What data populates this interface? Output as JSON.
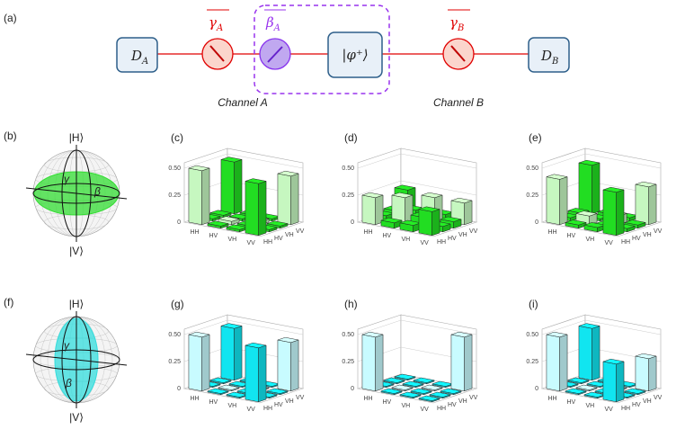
{
  "panel_a": {
    "label": "(a)",
    "detector_a": {
      "symbol": "D",
      "sub": "A"
    },
    "gamma_a": {
      "symbol": "γ",
      "sub": "A"
    },
    "beta_a": {
      "symbol": "β",
      "sub": "A"
    },
    "source": "|φ⁺⟩",
    "gamma_b": {
      "symbol": "γ",
      "sub": "B"
    },
    "detector_b": {
      "symbol": "D",
      "sub": "B"
    },
    "channel_a": "Channel A",
    "channel_b": "Channel B"
  },
  "spheres": [
    {
      "label": "(b)",
      "top": "|H⟩",
      "bottom": "|V⟩",
      "gamma": "γ",
      "beta": "β",
      "color": "#33dd33"
    },
    {
      "label": "(f)",
      "top": "|H⟩",
      "bottom": "|V⟩",
      "gamma": "γ",
      "beta": "β",
      "color": "#33dddd"
    }
  ],
  "chart_data": [
    {
      "type": "bar3d",
      "label": "(c)",
      "rows": [
        "HH",
        "HV",
        "VH",
        "VV"
      ],
      "cols": [
        "HH",
        "HV",
        "VH",
        "VV"
      ],
      "values": [
        [
          0.5,
          0.02,
          0.02,
          0.48
        ],
        [
          0.02,
          0.03,
          0.02,
          0.02
        ],
        [
          0.02,
          0.02,
          0.03,
          0.02
        ],
        [
          0.48,
          0.02,
          0.02,
          0.45
        ]
      ],
      "zlim": [
        0,
        0.55
      ],
      "zticks": [
        0,
        0.25,
        {
          "value": 0.5,
          "label": "0.50"
        }
      ],
      "colors": {
        "diagonal": "#c6f7c0",
        "off_diagonal": "#22dd22"
      }
    },
    {
      "type": "bar3d",
      "label": "(d)",
      "rows": [
        "HH",
        "HV",
        "VH",
        "VV"
      ],
      "cols": [
        "HH",
        "HV",
        "VH",
        "VV"
      ],
      "values": [
        [
          0.25,
          0.05,
          0.06,
          0.22
        ],
        [
          0.05,
          0.25,
          0.1,
          0.05
        ],
        [
          0.06,
          0.1,
          0.25,
          0.06
        ],
        [
          0.22,
          0.05,
          0.06,
          0.2
        ]
      ],
      "zlim": [
        0,
        0.55
      ],
      "zticks": [
        0,
        0.25,
        {
          "value": 0.5,
          "label": "0.50"
        }
      ],
      "colors": {
        "diagonal": "#c6f7c0",
        "off_diagonal": "#22dd22"
      }
    },
    {
      "type": "bar3d",
      "label": "(e)",
      "rows": [
        "HH",
        "HV",
        "VH",
        "VV"
      ],
      "cols": [
        "HH",
        "HV",
        "VH",
        "VV"
      ],
      "values": [
        [
          0.42,
          0.03,
          0.04,
          0.45
        ],
        [
          0.03,
          0.08,
          0.02,
          0.03
        ],
        [
          0.04,
          0.02,
          0.08,
          0.03
        ],
        [
          0.4,
          0.03,
          0.03,
          0.35
        ]
      ],
      "zlim": [
        0,
        0.55
      ],
      "zticks": [
        0,
        0.25,
        {
          "value": 0.5,
          "label": "0.50"
        }
      ],
      "colors": {
        "diagonal": "#c6f7c0",
        "off_diagonal": "#22dd22"
      }
    },
    {
      "type": "bar3d",
      "label": "(g)",
      "rows": [
        "HH",
        "HV",
        "VH",
        "VV"
      ],
      "cols": [
        "HH",
        "HV",
        "VH",
        "VV"
      ],
      "values": [
        [
          0.5,
          0.01,
          0.01,
          0.48
        ],
        [
          0.01,
          0.01,
          0.01,
          0.01
        ],
        [
          0.01,
          0.01,
          0.01,
          0.01
        ],
        [
          0.5,
          0.01,
          0.01,
          0.45
        ]
      ],
      "zlim": [
        0,
        0.55
      ],
      "zticks": [
        0,
        0.25,
        {
          "value": 0.5,
          "label": "0.50"
        }
      ],
      "colors": {
        "diagonal": "#c8fbff",
        "off_diagonal": "#11e5f0"
      }
    },
    {
      "type": "bar3d",
      "label": "(h)",
      "rows": [
        "HH",
        "HV",
        "VH",
        "VV"
      ],
      "cols": [
        "HH",
        "HV",
        "VH",
        "VV"
      ],
      "values": [
        [
          0.5,
          0.01,
          0.01,
          0.01
        ],
        [
          0.01,
          0.01,
          0.01,
          0.01
        ],
        [
          0.01,
          0.01,
          0.01,
          0.01
        ],
        [
          0.01,
          0.01,
          0.01,
          0.5
        ]
      ],
      "zlim": [
        0,
        0.55
      ],
      "zticks": [
        0,
        0.25,
        {
          "value": 0.5,
          "label": "0.50"
        }
      ],
      "colors": {
        "diagonal": "#c8fbff",
        "off_diagonal": "#11e5f0"
      }
    },
    {
      "type": "bar3d",
      "label": "(i)",
      "rows": [
        "HH",
        "HV",
        "VH",
        "VV"
      ],
      "cols": [
        "HH",
        "HV",
        "VH",
        "VV"
      ],
      "values": [
        [
          0.5,
          0.01,
          0.01,
          0.48
        ],
        [
          0.01,
          0.01,
          0.01,
          0.01
        ],
        [
          0.01,
          0.01,
          0.01,
          0.01
        ],
        [
          0.35,
          0.01,
          0.01,
          0.3
        ]
      ],
      "zlim": [
        0,
        0.55
      ],
      "zticks": [
        0,
        0.25,
        {
          "value": 0.5,
          "label": "0.50"
        }
      ],
      "colors": {
        "diagonal": "#c8fbff",
        "off_diagonal": "#11e5f0"
      }
    }
  ]
}
